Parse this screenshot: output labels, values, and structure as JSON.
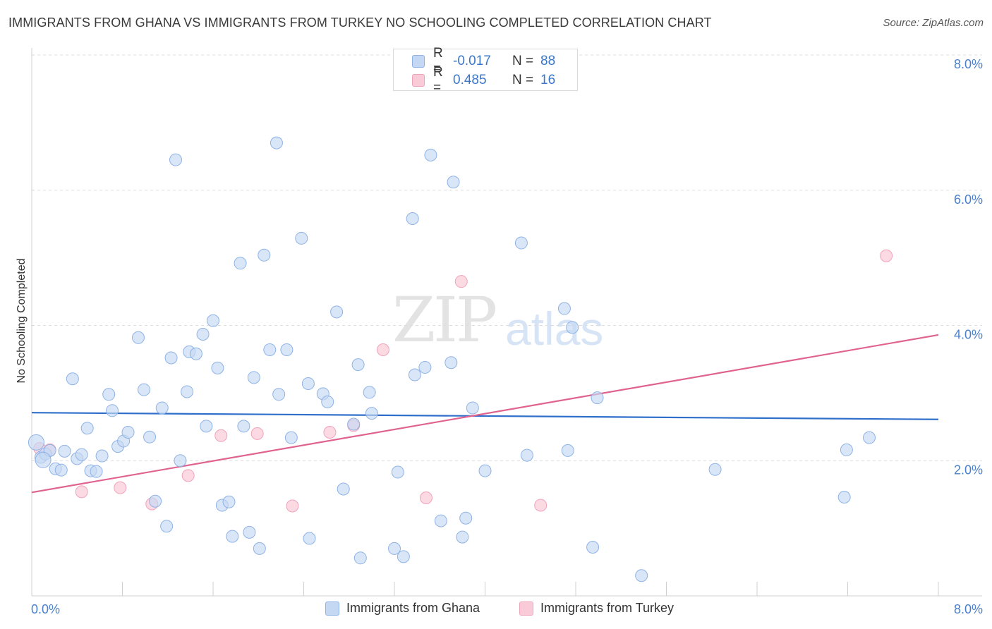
{
  "title": "IMMIGRANTS FROM GHANA VS IMMIGRANTS FROM TURKEY NO SCHOOLING COMPLETED CORRELATION CHART",
  "source": "Source: ZipAtlas.com",
  "watermark": {
    "zip": "ZIP",
    "atlas": "atlas"
  },
  "legend_top": [
    {
      "r_label": "R =",
      "r_value": "-0.017",
      "n_label": "N =",
      "n_value": "88"
    },
    {
      "r_label": "R =",
      "r_value": "0.485",
      "n_label": "N =",
      "n_value": "16"
    }
  ],
  "legend_bottom": [
    "Immigrants from Ghana",
    "Immigrants from Turkey"
  ],
  "colors": {
    "ghana_fill": "#c5d8f3",
    "ghana_stroke": "#8fb3e6",
    "ghana_line": "#2f6fcb",
    "turkey_fill": "#f9cad8",
    "turkey_stroke": "#f0a3bb",
    "turkey_line": "#e0628f",
    "axis_text": "#4a80cc"
  },
  "chart_data": {
    "type": "scatter",
    "title": "IMMIGRANTS FROM GHANA VS IMMIGRANTS FROM TURKEY NO SCHOOLING COMPLETED CORRELATION CHART",
    "xlabel": "",
    "ylabel": "No Schooling Completed",
    "xlim": [
      0,
      8.0
    ],
    "ylim": [
      0,
      8.0
    ],
    "y_ticks": [
      2.0,
      4.0,
      6.0,
      8.0
    ],
    "y_tick_labels": [
      "2.0%",
      "4.0%",
      "6.0%",
      "8.0%"
    ],
    "x_tick_labels": [
      "0.0%",
      "8.0%"
    ],
    "grid": true,
    "series": [
      {
        "name": "Immigrants from Ghana",
        "trend": {
          "x0": 0.0,
          "y0": 2.71,
          "x1": 8.0,
          "y1": 2.61
        },
        "points": [
          [
            0.04,
            2.27
          ],
          [
            0.08,
            2.05
          ],
          [
            0.12,
            2.1
          ],
          [
            0.16,
            2.15
          ],
          [
            0.21,
            1.88
          ],
          [
            0.26,
            1.86
          ],
          [
            0.29,
            2.14
          ],
          [
            0.36,
            3.21
          ],
          [
            0.4,
            2.03
          ],
          [
            0.44,
            2.09
          ],
          [
            0.49,
            2.48
          ],
          [
            0.52,
            1.85
          ],
          [
            0.57,
            1.84
          ],
          [
            0.62,
            2.07
          ],
          [
            0.68,
            2.98
          ],
          [
            0.71,
            2.74
          ],
          [
            0.76,
            2.21
          ],
          [
            0.81,
            2.29
          ],
          [
            0.85,
            2.42
          ],
          [
            0.94,
            3.82
          ],
          [
            0.99,
            3.05
          ],
          [
            1.04,
            2.35
          ],
          [
            1.09,
            1.4
          ],
          [
            1.15,
            2.78
          ],
          [
            1.19,
            1.03
          ],
          [
            1.23,
            3.52
          ],
          [
            1.27,
            6.45
          ],
          [
            1.31,
            2.0
          ],
          [
            1.37,
            3.02
          ],
          [
            1.39,
            3.61
          ],
          [
            1.45,
            3.58
          ],
          [
            1.51,
            3.87
          ],
          [
            1.54,
            2.51
          ],
          [
            1.6,
            4.07
          ],
          [
            1.64,
            3.37
          ],
          [
            1.68,
            1.34
          ],
          [
            1.74,
            1.39
          ],
          [
            1.77,
            0.88
          ],
          [
            1.84,
            4.92
          ],
          [
            1.87,
            2.51
          ],
          [
            1.92,
            0.94
          ],
          [
            1.96,
            3.23
          ],
          [
            2.01,
            0.7
          ],
          [
            2.05,
            5.04
          ],
          [
            2.1,
            3.64
          ],
          [
            2.16,
            6.7
          ],
          [
            2.18,
            2.98
          ],
          [
            2.25,
            3.64
          ],
          [
            2.29,
            2.34
          ],
          [
            2.38,
            5.29
          ],
          [
            2.44,
            3.14
          ],
          [
            2.45,
            0.85
          ],
          [
            2.57,
            2.99
          ],
          [
            2.61,
            2.87
          ],
          [
            2.69,
            4.2
          ],
          [
            2.75,
            1.58
          ],
          [
            2.84,
            2.54
          ],
          [
            2.88,
            3.42
          ],
          [
            2.9,
            0.56
          ],
          [
            2.98,
            3.01
          ],
          [
            3.0,
            2.7
          ],
          [
            3.2,
            0.7
          ],
          [
            3.23,
            1.83
          ],
          [
            3.28,
            0.58
          ],
          [
            3.36,
            5.58
          ],
          [
            3.38,
            3.27
          ],
          [
            3.47,
            3.38
          ],
          [
            3.52,
            6.52
          ],
          [
            3.61,
            1.11
          ],
          [
            3.7,
            3.45
          ],
          [
            3.72,
            6.12
          ],
          [
            3.8,
            0.87
          ],
          [
            3.83,
            1.15
          ],
          [
            3.89,
            2.78
          ],
          [
            4.0,
            1.85
          ],
          [
            4.32,
            5.22
          ],
          [
            4.37,
            2.08
          ],
          [
            4.7,
            4.25
          ],
          [
            4.73,
            2.15
          ],
          [
            4.77,
            3.97
          ],
          [
            4.95,
            0.72
          ],
          [
            4.99,
            2.93
          ],
          [
            5.38,
            0.3
          ],
          [
            6.03,
            1.87
          ],
          [
            7.17,
            1.46
          ],
          [
            7.19,
            2.16
          ],
          [
            7.39,
            2.34
          ],
          [
            0.1,
            2.01
          ]
        ]
      },
      {
        "name": "Immigrants from Turkey",
        "trend": {
          "x0": 0.0,
          "y0": 1.53,
          "x1": 8.0,
          "y1": 3.86
        },
        "points": [
          [
            0.07,
            2.18
          ],
          [
            0.16,
            2.16
          ],
          [
            0.44,
            1.54
          ],
          [
            0.78,
            1.6
          ],
          [
            1.06,
            1.36
          ],
          [
            1.38,
            1.78
          ],
          [
            1.67,
            2.37
          ],
          [
            1.99,
            2.4
          ],
          [
            2.3,
            1.33
          ],
          [
            2.63,
            2.42
          ],
          [
            2.84,
            2.52
          ],
          [
            3.1,
            3.64
          ],
          [
            3.48,
            1.45
          ],
          [
            3.79,
            4.65
          ],
          [
            4.49,
            1.34
          ],
          [
            7.54,
            5.03
          ]
        ]
      }
    ]
  }
}
